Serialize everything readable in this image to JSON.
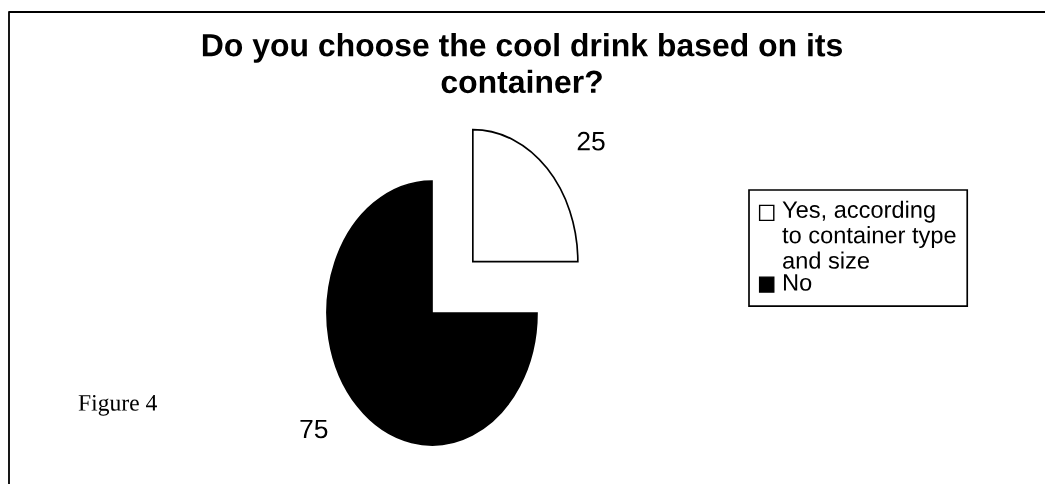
{
  "chart_data": {
    "type": "pie",
    "title": "Do you choose the cool drink based on its\ncontainer?",
    "categories": [
      "Yes, according\nto container type\nand size",
      "No"
    ],
    "values": [
      25,
      75
    ],
    "colors": [
      "#ffffff",
      "#000000"
    ],
    "data_labels": true,
    "legend": "right",
    "annotations": [
      "Figure 4"
    ]
  }
}
